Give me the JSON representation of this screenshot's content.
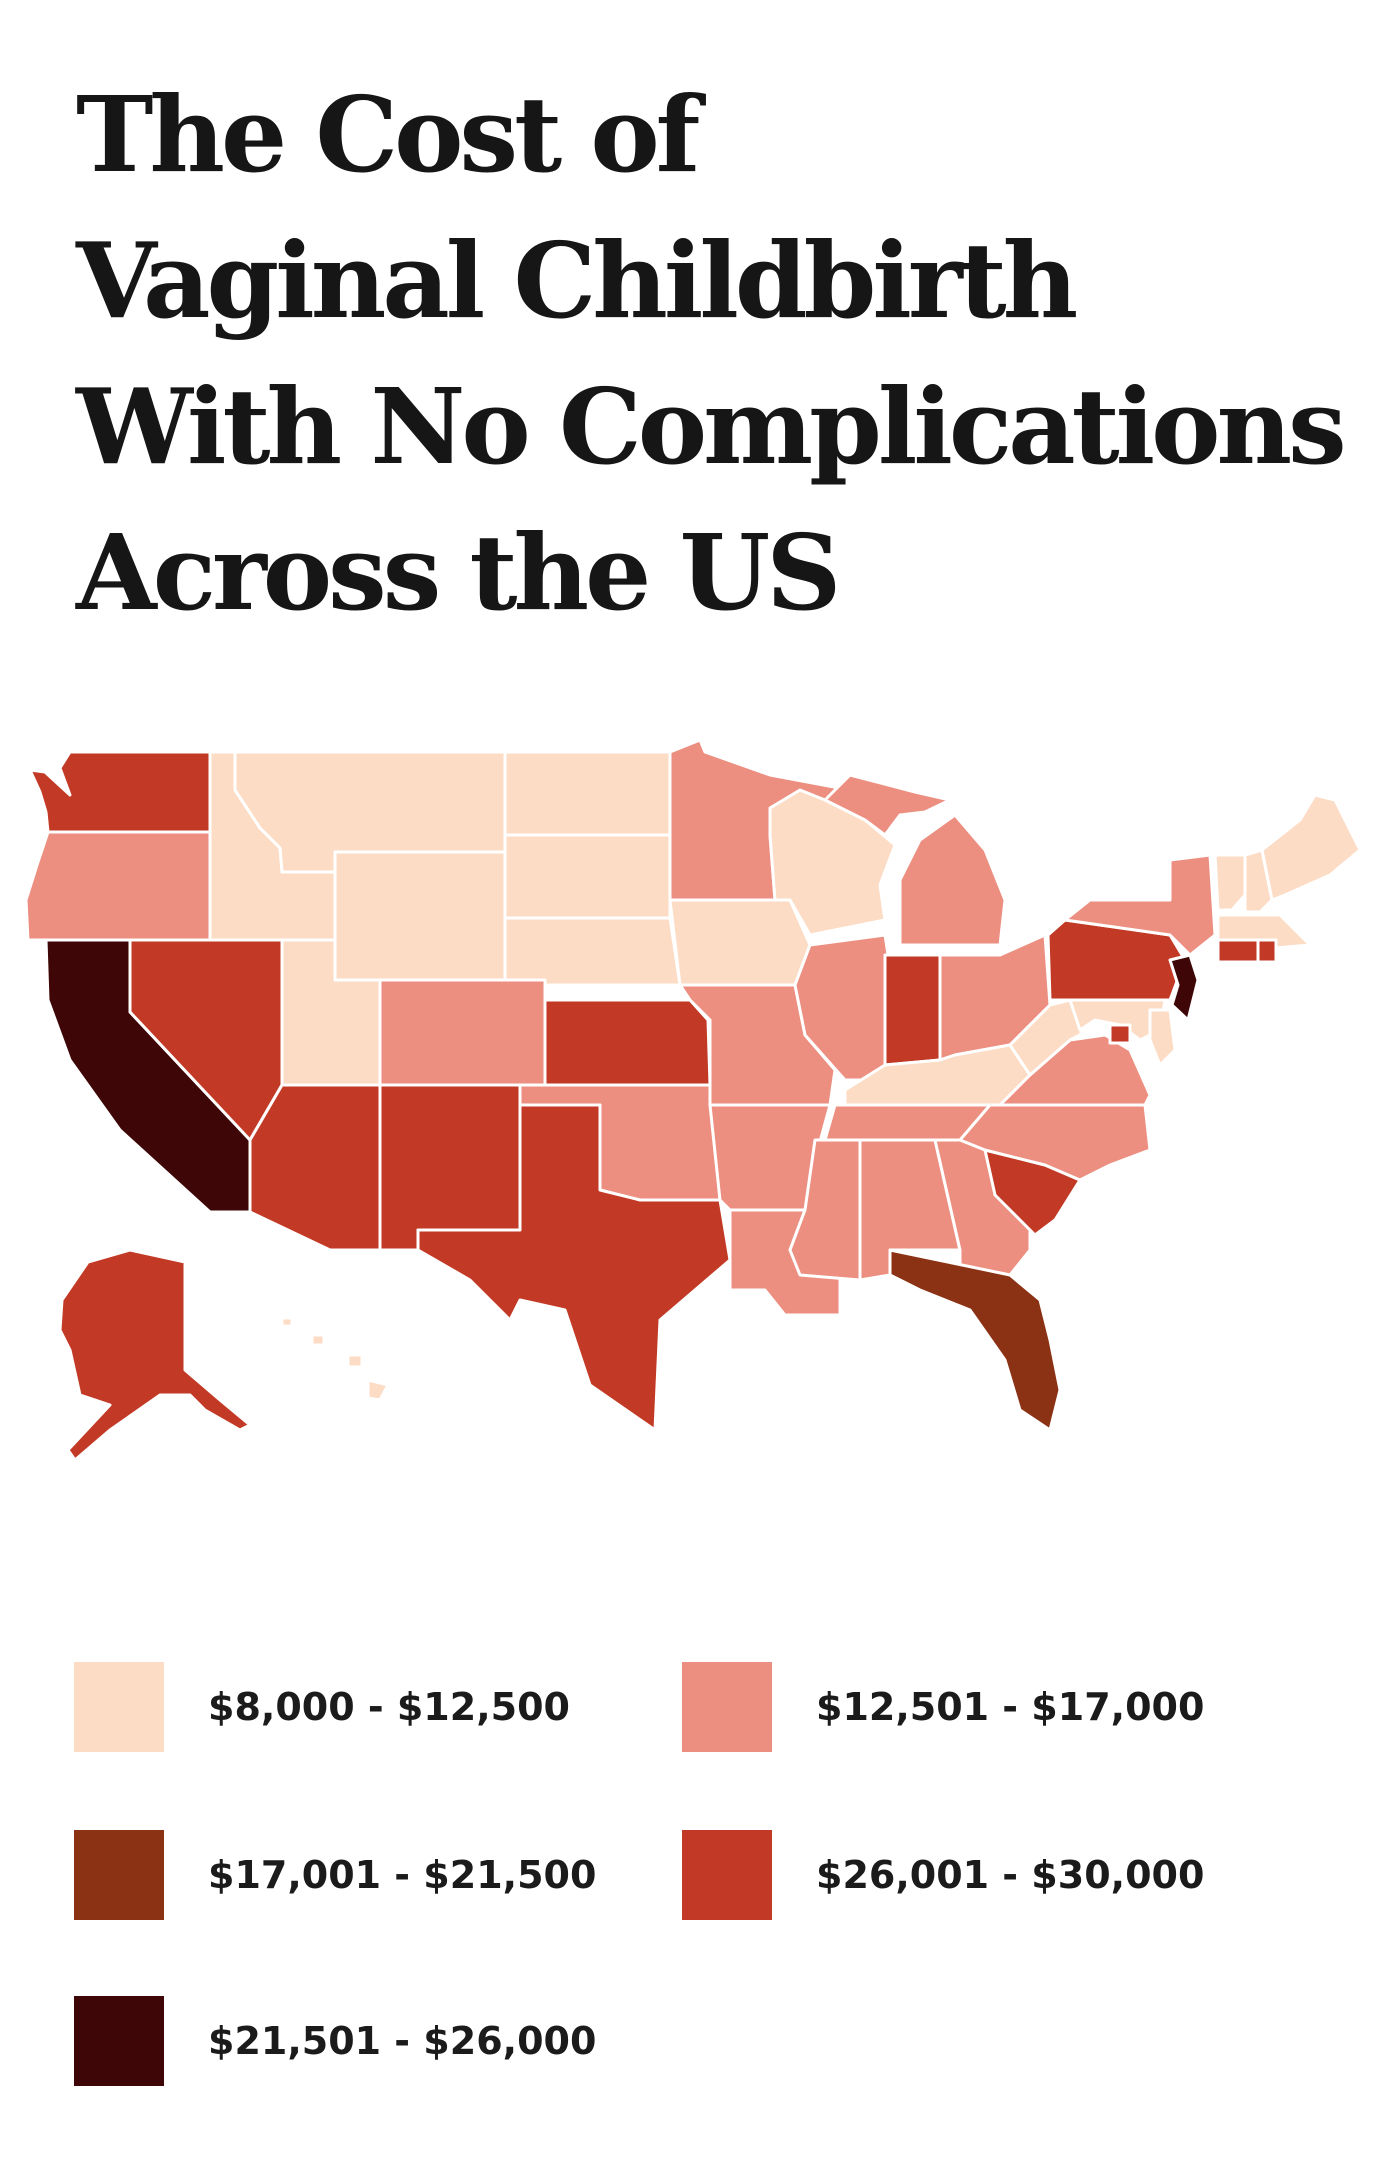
{
  "title_lines": [
    "The Cost of",
    "Vaginal Childbirth",
    "With No Complications",
    "Across the US"
  ],
  "colors": {
    "tier1": "#fcdcc5",
    "tier2": "#ec8e80",
    "tier3": "#8b3214",
    "tier4": "#c23a25",
    "tier5": "#3e0606"
  },
  "legend": [
    {
      "label": "$8,000 - $12,500",
      "color": "#fcdcc5"
    },
    {
      "label": "$12,501 - $17,000",
      "color": "#ec8e80"
    },
    {
      "label": "$17,001 - $21,500",
      "color": "#8b3214"
    },
    {
      "label": "$26,001 - $30,000",
      "color": "#c23a25"
    },
    {
      "label": "$21,501 - $26,000",
      "color": "#3e0606"
    }
  ]
}
